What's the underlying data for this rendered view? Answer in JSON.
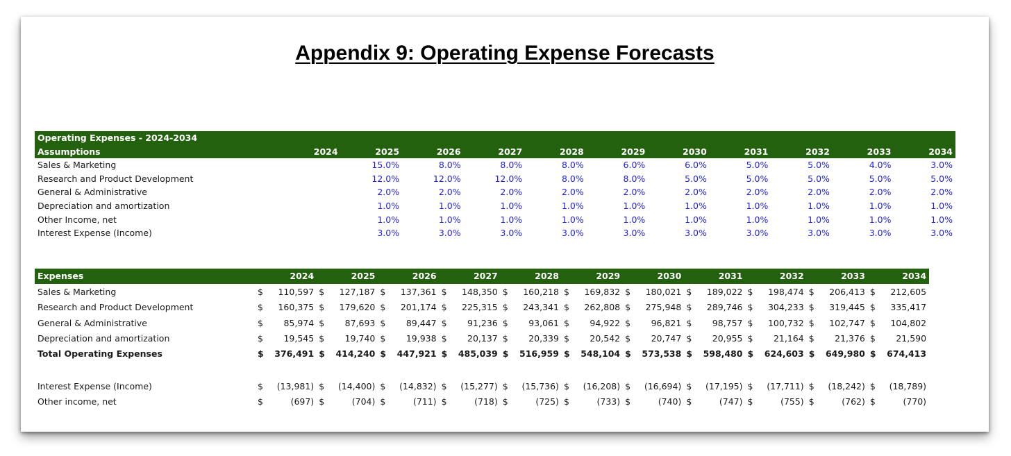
{
  "title": "Appendix 9: Operating Expense Forecasts",
  "colors": {
    "header_bg": "#23610f",
    "header_text": "#ffffff",
    "pct_text": "#1f1fdd"
  },
  "assumptions": {
    "header_line1": "Operating Expenses - 2024-2034",
    "header_line2": "Assumptions",
    "years": [
      "2024",
      "2025",
      "2026",
      "2027",
      "2028",
      "2029",
      "2030",
      "2031",
      "2032",
      "2033",
      "2034"
    ],
    "rows": [
      {
        "label": "Sales & Marketing",
        "values": [
          "",
          "15.0%",
          "8.0%",
          "8.0%",
          "8.0%",
          "6.0%",
          "6.0%",
          "5.0%",
          "5.0%",
          "4.0%",
          "3.0%"
        ]
      },
      {
        "label": "Research and Product Development",
        "values": [
          "",
          "12.0%",
          "12.0%",
          "12.0%",
          "8.0%",
          "8.0%",
          "5.0%",
          "5.0%",
          "5.0%",
          "5.0%",
          "5.0%"
        ]
      },
      {
        "label": "General & Administrative",
        "values": [
          "",
          "2.0%",
          "2.0%",
          "2.0%",
          "2.0%",
          "2.0%",
          "2.0%",
          "2.0%",
          "2.0%",
          "2.0%",
          "2.0%"
        ]
      },
      {
        "label": "Depreciation and amortization",
        "values": [
          "",
          "1.0%",
          "1.0%",
          "1.0%",
          "1.0%",
          "1.0%",
          "1.0%",
          "1.0%",
          "1.0%",
          "1.0%",
          "1.0%"
        ]
      },
      {
        "label": "Other Income, net",
        "values": [
          "",
          "1.0%",
          "1.0%",
          "1.0%",
          "1.0%",
          "1.0%",
          "1.0%",
          "1.0%",
          "1.0%",
          "1.0%",
          "1.0%"
        ]
      },
      {
        "label": "Interest Expense (Income)",
        "values": [
          "",
          "3.0%",
          "3.0%",
          "3.0%",
          "3.0%",
          "3.0%",
          "3.0%",
          "3.0%",
          "3.0%",
          "3.0%",
          "3.0%"
        ]
      }
    ]
  },
  "expenses": {
    "header": "Expenses",
    "currency": "$",
    "years": [
      "2024",
      "2025",
      "2026",
      "2027",
      "2028",
      "2029",
      "2030",
      "2031",
      "2032",
      "2033",
      "2034"
    ],
    "rows": [
      {
        "label": "Sales & Marketing",
        "bold": false,
        "values": [
          "110,597",
          "127,187",
          "137,361",
          "148,350",
          "160,218",
          "169,832",
          "180,021",
          "189,022",
          "198,474",
          "206,413",
          "212,605"
        ]
      },
      {
        "label": "Research and Product Development",
        "bold": false,
        "values": [
          "160,375",
          "179,620",
          "201,174",
          "225,315",
          "243,341",
          "262,808",
          "275,948",
          "289,746",
          "304,233",
          "319,445",
          "335,417"
        ]
      },
      {
        "label": "General & Administrative",
        "bold": false,
        "values": [
          "85,974",
          "87,693",
          "89,447",
          "91,236",
          "93,061",
          "94,922",
          "96,821",
          "98,757",
          "100,732",
          "102,747",
          "104,802"
        ]
      },
      {
        "label": "Depreciation and amortization",
        "bold": false,
        "values": [
          "19,545",
          "19,740",
          "19,938",
          "20,137",
          "20,339",
          "20,542",
          "20,747",
          "20,955",
          "21,164",
          "21,376",
          "21,590"
        ]
      },
      {
        "label": "Total Operating Expenses",
        "bold": true,
        "values": [
          "376,491",
          "414,240",
          "447,921",
          "485,039",
          "516,959",
          "548,104",
          "573,538",
          "598,480",
          "624,603",
          "649,980",
          "674,413"
        ]
      },
      {
        "label": "",
        "bold": false,
        "spacer": true,
        "values": []
      },
      {
        "label": "Interest Expense (Income)",
        "bold": false,
        "values": [
          "(13,981)",
          "(14,400)",
          "(14,832)",
          "(15,277)",
          "(15,736)",
          "(16,208)",
          "(16,694)",
          "(17,195)",
          "(17,711)",
          "(18,242)",
          "(18,789)"
        ]
      },
      {
        "label": "Other income, net",
        "bold": false,
        "values": [
          "(697)",
          "(704)",
          "(711)",
          "(718)",
          "(725)",
          "(733)",
          "(740)",
          "(747)",
          "(755)",
          "(762)",
          "(770)"
        ]
      }
    ]
  }
}
